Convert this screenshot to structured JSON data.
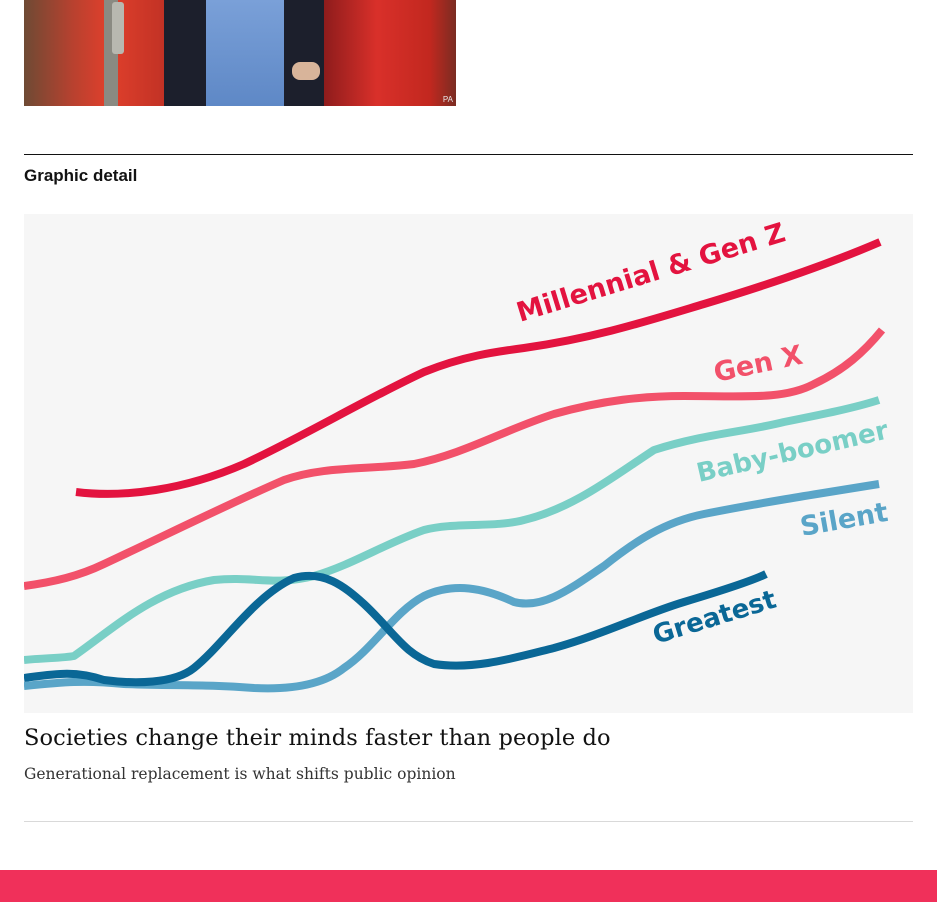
{
  "photo": {
    "credit": "PA",
    "icon": "photo-of-man-in-doorway"
  },
  "section": {
    "label": "Graphic detail"
  },
  "article": {
    "headline": "Societies change their minds faster than people do",
    "subhead": "Generational replacement is what shifts public opinion"
  },
  "colors": {
    "accent_bar": "#f0305a",
    "card_background": "#f6f6f6"
  },
  "chart_data": {
    "type": "line",
    "title": "",
    "xlabel": "",
    "ylabel": "",
    "series": [
      {
        "name": "Millennial & Gen Z",
        "color": "#e3133f",
        "values": []
      },
      {
        "name": "Gen X",
        "color": "#f2516a",
        "values": []
      },
      {
        "name": "Baby-boomer",
        "color": "#79cfc6",
        "values": []
      },
      {
        "name": "Silent",
        "color": "#5aa5c8",
        "values": []
      },
      {
        "name": "Greatest",
        "color": "#0a6796",
        "values": []
      }
    ]
  }
}
